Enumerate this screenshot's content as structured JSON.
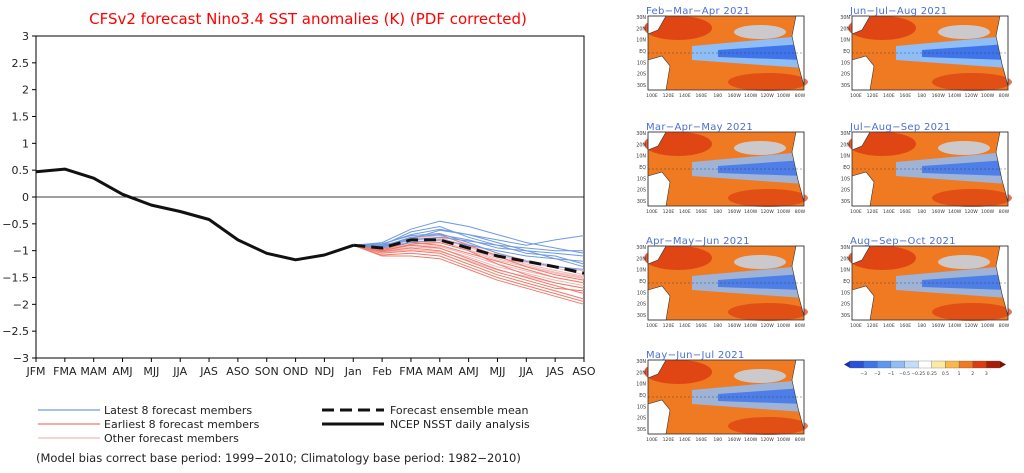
{
  "chart_data": {
    "type": "line",
    "title": "CFSv2 forecast Nino3.4 SST anomalies (K) (PDF corrected)",
    "x_categories": [
      "JFM",
      "FMA",
      "MAM",
      "AMJ",
      "MJJ",
      "JJA",
      "JAS",
      "ASO",
      "SON",
      "OND",
      "NDJ",
      "Jan",
      "Feb",
      "FMA",
      "MAM",
      "AMJ",
      "MJJ",
      "JJA",
      "JAS",
      "ASO"
    ],
    "ylim": [
      -3,
      3
    ],
    "y_ticks": [
      -3,
      -2.5,
      -2,
      -1.5,
      -1,
      -0.5,
      0,
      0.5,
      1,
      1.5,
      2,
      2.5,
      3
    ],
    "y_tick_labels": [
      "−3",
      "−2.5",
      "−2",
      "−1.5",
      "−1",
      "−0.5",
      "0",
      "0.5",
      "1",
      "1.5",
      "2",
      "2.5",
      "3"
    ],
    "x_tick_labels": [
      "JFM",
      "FMA",
      "MAM",
      "AMJ",
      "MJJ",
      "JJA",
      "JAS",
      "ASO",
      "SON",
      "OND",
      "NDJ",
      "Jan",
      "Feb",
      "FMA",
      "MAM",
      "AMJ",
      "MJJ",
      "JJA",
      "JAS",
      "ASO"
    ],
    "analysis": {
      "name": "NCEP NSST daily analysis",
      "x_index": [
        0,
        1,
        2,
        3,
        4,
        5,
        6,
        7,
        8,
        9,
        10,
        11
      ],
      "values": [
        0.47,
        0.52,
        0.35,
        0.05,
        -0.15,
        -0.27,
        -0.42,
        -0.8,
        -1.05,
        -1.17,
        -1.08,
        -0.9
      ]
    },
    "ensemble_mean": {
      "name": "Forecast ensemble mean",
      "x_index": [
        11,
        12,
        13,
        14,
        15,
        16,
        17,
        18,
        19
      ],
      "values": [
        -0.9,
        -0.95,
        -0.8,
        -0.8,
        -0.95,
        -1.1,
        -1.2,
        -1.3,
        -1.42
      ]
    },
    "members": {
      "x_index": [
        11,
        12,
        13,
        14,
        15,
        16,
        17,
        18,
        19
      ],
      "latest": [
        [
          -0.9,
          -0.85,
          -0.6,
          -0.45,
          -0.55,
          -0.7,
          -0.85,
          -0.95,
          -1.05
        ],
        [
          -0.9,
          -0.88,
          -0.7,
          -0.6,
          -0.7,
          -0.8,
          -0.9,
          -0.8,
          -0.72
        ],
        [
          -0.9,
          -0.92,
          -0.75,
          -0.7,
          -0.8,
          -0.95,
          -1.0,
          -1.05,
          -1.1
        ],
        [
          -0.9,
          -0.9,
          -0.65,
          -0.55,
          -0.75,
          -0.9,
          -1.05,
          -1.1,
          -1.25
        ],
        [
          -0.9,
          -0.95,
          -0.85,
          -0.8,
          -0.9,
          -1.0,
          -1.1,
          -1.15,
          -1.2
        ],
        [
          -0.9,
          -0.87,
          -0.72,
          -0.68,
          -0.85,
          -1.05,
          -1.2,
          -1.3,
          -1.35
        ],
        [
          -0.9,
          -0.93,
          -0.8,
          -0.75,
          -0.82,
          -0.9,
          -0.95,
          -1.0,
          -1.0
        ],
        [
          -0.9,
          -0.9,
          -0.78,
          -0.62,
          -0.7,
          -0.85,
          -1.0,
          -1.15,
          -1.3
        ]
      ],
      "earliest": [
        [
          -0.9,
          -1.0,
          -0.9,
          -0.95,
          -1.15,
          -1.35,
          -1.5,
          -1.65,
          -1.8
        ],
        [
          -0.9,
          -1.05,
          -1.0,
          -1.05,
          -1.25,
          -1.45,
          -1.6,
          -1.75,
          -1.9
        ],
        [
          -0.9,
          -0.98,
          -0.85,
          -0.9,
          -1.05,
          -1.2,
          -1.35,
          -1.5,
          -1.6
        ],
        [
          -0.9,
          -1.1,
          -1.1,
          -1.15,
          -1.35,
          -1.55,
          -1.7,
          -1.85,
          -2.0
        ],
        [
          -0.9,
          -0.95,
          -0.75,
          -0.7,
          -0.9,
          -1.1,
          -1.3,
          -1.45,
          -1.55
        ],
        [
          -0.9,
          -1.02,
          -0.95,
          -1.0,
          -1.2,
          -1.4,
          -1.55,
          -1.7,
          -1.75
        ],
        [
          -0.9,
          -1.0,
          -0.88,
          -0.85,
          -1.0,
          -1.25,
          -1.45,
          -1.6,
          -1.7
        ],
        [
          -0.9,
          -1.08,
          -1.05,
          -1.1,
          -1.3,
          -1.5,
          -1.65,
          -1.8,
          -1.95
        ]
      ],
      "other": [
        [
          -0.9,
          -0.97,
          -0.82,
          -0.82,
          -0.98,
          -1.15,
          -1.28,
          -1.4,
          -1.5
        ],
        [
          -0.9,
          -0.92,
          -0.78,
          -0.76,
          -0.92,
          -1.08,
          -1.22,
          -1.32,
          -1.45
        ],
        [
          -0.9,
          -0.99,
          -0.9,
          -0.92,
          -1.08,
          -1.25,
          -1.38,
          -1.5,
          -1.6
        ],
        [
          -0.9,
          -0.94,
          -0.8,
          -0.78,
          -0.94,
          -1.12,
          -1.25,
          -1.37,
          -1.48
        ],
        [
          -0.9,
          -1.01,
          -0.93,
          -0.96,
          -1.12,
          -1.3,
          -1.42,
          -1.55,
          -1.65
        ],
        [
          -0.9,
          -0.96,
          -0.84,
          -0.85,
          -1.0,
          -1.18,
          -1.3,
          -1.42,
          -1.52
        ],
        [
          -0.9,
          -0.93,
          -0.77,
          -0.72,
          -0.88,
          -1.04,
          -1.18,
          -1.28,
          -1.38
        ],
        [
          -0.9,
          -1.03,
          -0.98,
          -1.02,
          -1.18,
          -1.36,
          -1.48,
          -1.6,
          -1.7
        ]
      ]
    },
    "legend": {
      "latest": "Latest 8 forecast members",
      "earliest": "Earliest 8 forecast members",
      "other": "Other forecast members",
      "mean": "Forecast ensemble mean",
      "analysis": "NCEP NSST daily analysis"
    },
    "footnote": "(Model bias correct base period: 1999−2010; Climatology base period: 1982−2010)",
    "colors": {
      "title": "#ff0000",
      "latest": "#6f9ae0",
      "earliest": "#f07a6a",
      "other": "#f2b8b8",
      "mean": "#111111",
      "analysis": "#111111"
    }
  },
  "maps": {
    "panels": [
      {
        "title": "Feb−Mar−Apr 2021"
      },
      {
        "title": "Jun−Jul−Aug 2021"
      },
      {
        "title": "Mar−Apr−May 2021"
      },
      {
        "title": "Jul−Aug−Sep 2021"
      },
      {
        "title": "Apr−May−Jun 2021"
      },
      {
        "title": "Aug−Sep−Oct 2021"
      },
      {
        "title": "May−Jun−Jul 2021"
      }
    ],
    "lat_labels": [
      "30N",
      "20N",
      "10N",
      "EQ",
      "10S",
      "20S",
      "30S"
    ],
    "lon_labels": [
      "100E",
      "120E",
      "140E",
      "160E",
      "180",
      "160W",
      "140W",
      "120W",
      "100W",
      "80W"
    ],
    "colorbar": {
      "labels": [
        "−3",
        "−2",
        "−1",
        "−0.5",
        "−0.25",
        "0.25",
        "0.5",
        "1",
        "2",
        "3"
      ],
      "colors": [
        "#2a4fd9",
        "#3f74ea",
        "#5e97f2",
        "#8fbdf6",
        "#c3ddf8",
        "#ffffff",
        "#fde9a6",
        "#f8b84a",
        "#f07a22",
        "#dc3d10",
        "#a81d08"
      ]
    }
  }
}
